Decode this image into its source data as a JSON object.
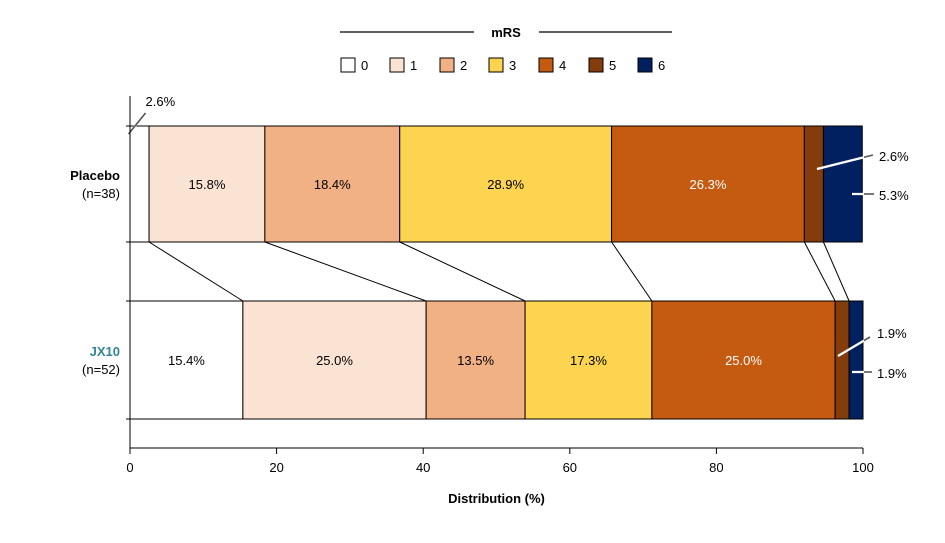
{
  "chart_data": {
    "type": "bar",
    "orientation": "horizontal",
    "stacked": true,
    "xlabel": "Distribution (%)",
    "xlim": [
      0,
      100
    ],
    "xticks": [
      0,
      20,
      40,
      60,
      80,
      100
    ],
    "legend": {
      "title": "mRS",
      "placement": "top-center",
      "entries": [
        "0",
        "1",
        "2",
        "3",
        "4",
        "5",
        "6"
      ]
    },
    "colors": [
      "#ffffff",
      "#fbe3d4",
      "#f2b085",
      "#fdd44f",
      "#c55a11",
      "#843c0c",
      "#002060"
    ],
    "groups": [
      {
        "name": "Placebo",
        "n_label": "(n=38)",
        "name_color": "#000000",
        "values": [
          2.6,
          15.8,
          18.4,
          28.9,
          26.3,
          2.6,
          5.3
        ],
        "labels": [
          "2.6%",
          "15.8%",
          "18.4%",
          "28.9%",
          "26.3%",
          "2.6%",
          "5.3%"
        ]
      },
      {
        "name": "JX10",
        "n_label": "(n=52)",
        "name_color": "#31849b",
        "values": [
          15.4,
          25.0,
          13.5,
          17.3,
          25.0,
          1.9,
          1.9
        ],
        "labels": [
          "15.4%",
          "25.0%",
          "13.5%",
          "17.3%",
          "25.0%",
          "1.9%",
          "1.9%"
        ]
      }
    ]
  }
}
